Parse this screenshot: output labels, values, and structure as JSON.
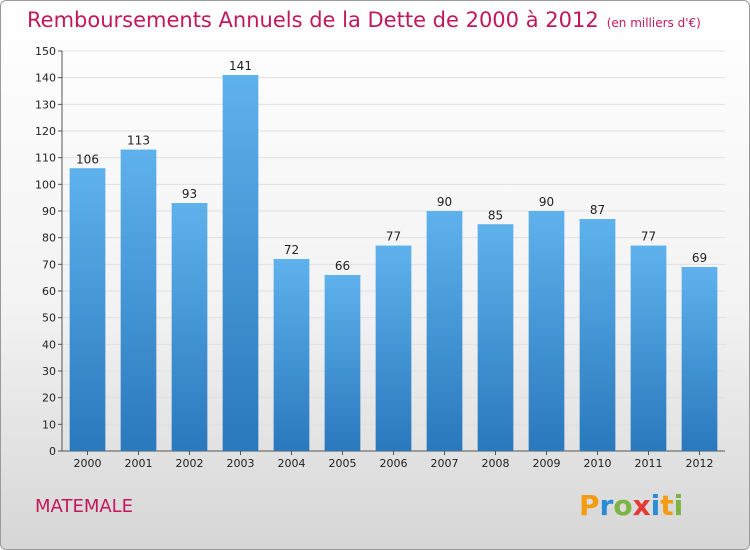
{
  "header": {
    "title": "Remboursements Annuels de la Dette de 2000 à 2012",
    "unit": "(en milliers d'€)"
  },
  "footer": {
    "commune": "MATEMALE"
  },
  "logo": {
    "text": "Proxiti",
    "letters": [
      {
        "ch": "P",
        "color": "#f39c12"
      },
      {
        "ch": "r",
        "color": "#2a8bd6"
      },
      {
        "ch": "o",
        "color": "#7cb342"
      },
      {
        "ch": "x",
        "color": "#e53935"
      },
      {
        "ch": "i",
        "color": "#2a8bd6"
      },
      {
        "ch": "t",
        "color": "#f39c12"
      },
      {
        "ch": "i",
        "color": "#7cb342"
      }
    ]
  },
  "chart_data": {
    "type": "bar",
    "title": "Remboursements Annuels de la Dette de 2000 à 2012",
    "subtitle": "(en milliers d'€)",
    "categories": [
      "2000",
      "2001",
      "2002",
      "2003",
      "2004",
      "2005",
      "2006",
      "2007",
      "2008",
      "2009",
      "2010",
      "2011",
      "2012"
    ],
    "values": [
      106,
      113,
      93,
      141,
      72,
      66,
      77,
      90,
      85,
      90,
      87,
      77,
      69
    ],
    "ylim": [
      0,
      150
    ],
    "yticks": [
      0,
      10,
      20,
      30,
      40,
      50,
      60,
      70,
      80,
      90,
      100,
      110,
      120,
      130,
      140,
      150
    ],
    "grid": true,
    "bar_color": "#3a94d8",
    "bar_color_light": "#5eb2ec",
    "bar_color_dark": "#2a78bd",
    "grid_color": "#e0e0e0",
    "text_color": "#222222"
  }
}
